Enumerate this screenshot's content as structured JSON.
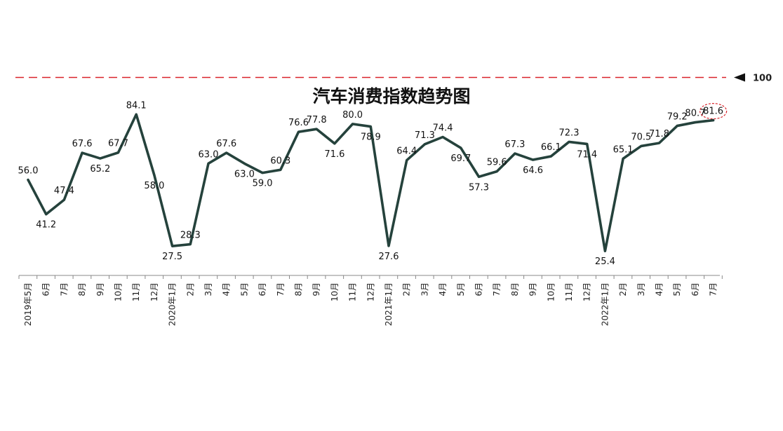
{
  "chart_data": {
    "type": "line",
    "title": "汽车消费指数趋势图",
    "xlabel": "",
    "ylabel": "",
    "categories": [
      "2019年5月",
      "6月",
      "7月",
      "8月",
      "9月",
      "10月",
      "11月",
      "12月",
      "2020年1月",
      "2月",
      "3月",
      "4月",
      "5月",
      "6月",
      "7月",
      "8月",
      "9月",
      "10月",
      "11月",
      "12月",
      "2021年1月",
      "2月",
      "3月",
      "4月",
      "5月",
      "6月",
      "7月",
      "8月",
      "9月",
      "10月",
      "11月",
      "12月",
      "2022年1月",
      "2月",
      "3月",
      "4月",
      "5月",
      "6月",
      "7月"
    ],
    "series": [
      {
        "values": [
          56.0,
          41.2,
          47.4,
          67.6,
          65.2,
          67.7,
          84.1,
          58.0,
          27.5,
          28.3,
          63.0,
          67.6,
          63.0,
          59.0,
          60.3,
          76.6,
          77.8,
          71.6,
          80.0,
          78.9,
          27.6,
          64.4,
          71.3,
          74.4,
          69.7,
          57.3,
          59.6,
          67.3,
          64.6,
          66.1,
          72.3,
          71.4,
          25.4,
          65.1,
          70.5,
          71.8,
          79.2,
          80.7,
          81.6
        ]
      }
    ],
    "data_labels": [
      "56.0",
      "41.2",
      "47.4",
      "67.6",
      "65.2",
      "67.7",
      "84.1",
      "58.0",
      "27.5",
      "28.3",
      "63.0",
      "67.6",
      "63.0",
      "59.0",
      "60.3",
      "76.6",
      "77.8",
      "71.6",
      "80.0",
      "78.9",
      "27.6",
      "64.4",
      "71.3",
      "74.4",
      "69.7",
      "57.3",
      "59.6",
      "67.3",
      "64.6",
      "66.1",
      "72.3",
      "71.4",
      "25.4",
      "65.1",
      "70.5",
      "71.8",
      "79.2",
      "80.7",
      "81.6"
    ],
    "reference_line": {
      "value": 100,
      "label": "100",
      "color": "#d9232a"
    },
    "highlight_last_point": true,
    "ylim": [
      0,
      100
    ],
    "grid": false,
    "legend": "none",
    "line_color": "#25423c"
  }
}
